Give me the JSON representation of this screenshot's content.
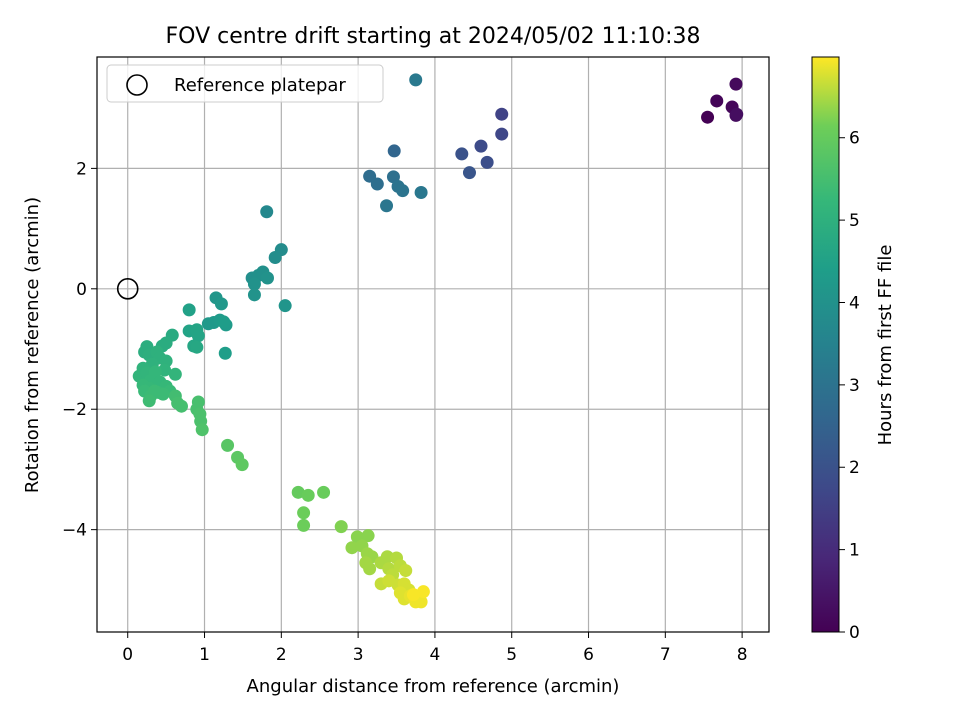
{
  "chart_data": {
    "type": "scatter",
    "title": "FOV centre drift starting at 2024/05/02 11:10:38",
    "xlabel": "Angular distance from reference (arcmin)",
    "ylabel": "Rotation from reference (arcmin)",
    "xlim": [
      -0.4,
      8.35
    ],
    "ylim": [
      -5.7,
      3.85
    ],
    "xticks": [
      0,
      1,
      2,
      3,
      4,
      5,
      6,
      7,
      8
    ],
    "yticks": [
      -4,
      -2,
      0,
      2
    ],
    "grid": true,
    "legend": {
      "position": "top-left",
      "entries": [
        "Reference platepar"
      ]
    },
    "reference_point": {
      "x": 0,
      "y": 0
    },
    "colorbar": {
      "label": "Hours from first FF file",
      "range": [
        0,
        6.98
      ],
      "ticks": [
        0,
        1,
        2,
        3,
        4,
        5,
        6
      ],
      "colormap": "viridis"
    },
    "points": [
      {
        "x": 7.55,
        "y": 2.85,
        "h": 0.0
      },
      {
        "x": 7.67,
        "y": 3.12,
        "h": 0.1
      },
      {
        "x": 7.87,
        "y": 3.02,
        "h": 0.15
      },
      {
        "x": 7.92,
        "y": 3.4,
        "h": 0.2
      },
      {
        "x": 7.92,
        "y": 2.88,
        "h": 0.25
      },
      {
        "x": 7.93,
        "y": 2.9,
        "h": 0.3
      },
      {
        "x": 4.87,
        "y": 2.9,
        "h": 1.6
      },
      {
        "x": 4.87,
        "y": 2.57,
        "h": 1.7
      },
      {
        "x": 4.6,
        "y": 2.37,
        "h": 1.8
      },
      {
        "x": 4.68,
        "y": 2.1,
        "h": 1.9
      },
      {
        "x": 4.35,
        "y": 2.24,
        "h": 2.0
      },
      {
        "x": 4.45,
        "y": 1.93,
        "h": 2.1
      },
      {
        "x": 3.47,
        "y": 2.29,
        "h": 2.6
      },
      {
        "x": 3.15,
        "y": 1.87,
        "h": 2.8
      },
      {
        "x": 3.25,
        "y": 1.74,
        "h": 2.85
      },
      {
        "x": 3.46,
        "y": 1.86,
        "h": 2.9
      },
      {
        "x": 3.52,
        "y": 1.7,
        "h": 3.0
      },
      {
        "x": 3.58,
        "y": 1.63,
        "h": 3.05
      },
      {
        "x": 3.37,
        "y": 1.38,
        "h": 3.1
      },
      {
        "x": 3.82,
        "y": 1.6,
        "h": 3.15
      },
      {
        "x": 3.75,
        "y": 3.47,
        "h": 3.2
      },
      {
        "x": 1.81,
        "y": 1.28,
        "h": 3.7
      },
      {
        "x": 2.0,
        "y": 0.65,
        "h": 3.8
      },
      {
        "x": 1.92,
        "y": 0.52,
        "h": 3.85
      },
      {
        "x": 1.62,
        "y": 0.18,
        "h": 3.9
      },
      {
        "x": 1.7,
        "y": 0.22,
        "h": 3.95
      },
      {
        "x": 1.76,
        "y": 0.28,
        "h": 3.95
      },
      {
        "x": 1.82,
        "y": 0.18,
        "h": 4.0
      },
      {
        "x": 1.65,
        "y": 0.08,
        "h": 4.0
      },
      {
        "x": 1.65,
        "y": -0.1,
        "h": 4.05
      },
      {
        "x": 2.05,
        "y": -0.28,
        "h": 4.1
      },
      {
        "x": 1.15,
        "y": -0.15,
        "h": 4.15
      },
      {
        "x": 1.22,
        "y": -0.25,
        "h": 4.2
      },
      {
        "x": 1.05,
        "y": -0.58,
        "h": 4.25
      },
      {
        "x": 1.12,
        "y": -0.56,
        "h": 4.25
      },
      {
        "x": 1.2,
        "y": -0.52,
        "h": 4.3
      },
      {
        "x": 1.28,
        "y": -0.6,
        "h": 4.3
      },
      {
        "x": 1.25,
        "y": -0.55,
        "h": 4.35
      },
      {
        "x": 1.27,
        "y": -1.07,
        "h": 4.4
      },
      {
        "x": 0.8,
        "y": -0.35,
        "h": 4.5
      },
      {
        "x": 0.8,
        "y": -0.7,
        "h": 4.55
      },
      {
        "x": 0.9,
        "y": -0.68,
        "h": 4.6
      },
      {
        "x": 0.92,
        "y": -0.78,
        "h": 4.6
      },
      {
        "x": 0.86,
        "y": -0.95,
        "h": 4.65
      },
      {
        "x": 0.9,
        "y": -0.97,
        "h": 4.7
      },
      {
        "x": 0.58,
        "y": -0.77,
        "h": 4.8
      },
      {
        "x": 0.5,
        "y": -0.9,
        "h": 4.85
      },
      {
        "x": 0.45,
        "y": -0.95,
        "h": 4.85
      },
      {
        "x": 0.25,
        "y": -0.96,
        "h": 4.9
      },
      {
        "x": 0.22,
        "y": -1.05,
        "h": 4.9
      },
      {
        "x": 0.28,
        "y": -1.1,
        "h": 4.95
      },
      {
        "x": 0.38,
        "y": -1.05,
        "h": 5.0
      },
      {
        "x": 0.42,
        "y": -1.15,
        "h": 5.0
      },
      {
        "x": 0.5,
        "y": -1.2,
        "h": 5.05
      },
      {
        "x": 0.32,
        "y": -1.25,
        "h": 5.05
      },
      {
        "x": 0.2,
        "y": -1.32,
        "h": 5.1
      },
      {
        "x": 0.48,
        "y": -1.35,
        "h": 5.1
      },
      {
        "x": 0.62,
        "y": -1.42,
        "h": 5.15
      },
      {
        "x": 0.15,
        "y": -1.45,
        "h": 5.15
      },
      {
        "x": 0.25,
        "y": -1.4,
        "h": 5.15
      },
      {
        "x": 0.36,
        "y": -1.38,
        "h": 5.2
      },
      {
        "x": 0.3,
        "y": -1.52,
        "h": 5.2
      },
      {
        "x": 0.42,
        "y": -1.55,
        "h": 5.2
      },
      {
        "x": 0.2,
        "y": -1.6,
        "h": 5.25
      },
      {
        "x": 0.28,
        "y": -1.65,
        "h": 5.25
      },
      {
        "x": 0.5,
        "y": -1.62,
        "h": 5.25
      },
      {
        "x": 0.55,
        "y": -1.7,
        "h": 5.3
      },
      {
        "x": 0.4,
        "y": -1.72,
        "h": 5.3
      },
      {
        "x": 0.22,
        "y": -1.7,
        "h": 5.3
      },
      {
        "x": 0.3,
        "y": -1.78,
        "h": 5.35
      },
      {
        "x": 0.46,
        "y": -1.75,
        "h": 5.35
      },
      {
        "x": 0.35,
        "y": -1.7,
        "h": 5.35
      },
      {
        "x": 0.28,
        "y": -1.86,
        "h": 5.4
      },
      {
        "x": 0.62,
        "y": -1.78,
        "h": 5.45
      },
      {
        "x": 0.65,
        "y": -1.9,
        "h": 5.5
      },
      {
        "x": 0.7,
        "y": -1.95,
        "h": 5.5
      },
      {
        "x": 0.92,
        "y": -1.88,
        "h": 5.55
      },
      {
        "x": 0.9,
        "y": -2.0,
        "h": 5.55
      },
      {
        "x": 0.94,
        "y": -2.08,
        "h": 5.6
      },
      {
        "x": 0.95,
        "y": -2.2,
        "h": 5.6
      },
      {
        "x": 0.97,
        "y": -2.34,
        "h": 5.65
      },
      {
        "x": 1.3,
        "y": -2.6,
        "h": 5.8
      },
      {
        "x": 1.43,
        "y": -2.8,
        "h": 5.85
      },
      {
        "x": 1.49,
        "y": -2.92,
        "h": 5.9
      },
      {
        "x": 2.22,
        "y": -3.38,
        "h": 6.0
      },
      {
        "x": 2.35,
        "y": -3.43,
        "h": 6.05
      },
      {
        "x": 2.55,
        "y": -3.38,
        "h": 6.05
      },
      {
        "x": 2.29,
        "y": -3.72,
        "h": 6.1
      },
      {
        "x": 2.29,
        "y": -3.93,
        "h": 6.1
      },
      {
        "x": 2.78,
        "y": -3.95,
        "h": 6.25
      },
      {
        "x": 2.99,
        "y": -4.12,
        "h": 6.3
      },
      {
        "x": 3.13,
        "y": -4.1,
        "h": 6.3
      },
      {
        "x": 2.92,
        "y": -4.3,
        "h": 6.35
      },
      {
        "x": 3.05,
        "y": -4.27,
        "h": 6.35
      },
      {
        "x": 3.12,
        "y": -4.4,
        "h": 6.4
      },
      {
        "x": 3.18,
        "y": -4.45,
        "h": 6.4
      },
      {
        "x": 3.1,
        "y": -4.55,
        "h": 6.45
      },
      {
        "x": 3.15,
        "y": -4.65,
        "h": 6.45
      },
      {
        "x": 3.3,
        "y": -4.55,
        "h": 6.5
      },
      {
        "x": 3.38,
        "y": -4.45,
        "h": 6.5
      },
      {
        "x": 3.5,
        "y": -4.47,
        "h": 6.55
      },
      {
        "x": 3.4,
        "y": -4.65,
        "h": 6.55
      },
      {
        "x": 3.45,
        "y": -4.75,
        "h": 6.6
      },
      {
        "x": 3.55,
        "y": -4.6,
        "h": 6.6
      },
      {
        "x": 3.62,
        "y": -4.68,
        "h": 6.65
      },
      {
        "x": 3.3,
        "y": -4.9,
        "h": 6.65
      },
      {
        "x": 3.4,
        "y": -4.85,
        "h": 6.7
      },
      {
        "x": 3.52,
        "y": -4.92,
        "h": 6.7
      },
      {
        "x": 3.6,
        "y": -4.9,
        "h": 6.75
      },
      {
        "x": 3.66,
        "y": -5.0,
        "h": 6.75
      },
      {
        "x": 3.55,
        "y": -5.05,
        "h": 6.8
      },
      {
        "x": 3.6,
        "y": -5.15,
        "h": 6.8
      },
      {
        "x": 3.68,
        "y": -5.1,
        "h": 6.85
      },
      {
        "x": 3.75,
        "y": -5.2,
        "h": 6.9
      },
      {
        "x": 3.82,
        "y": -5.2,
        "h": 6.9
      },
      {
        "x": 3.85,
        "y": -5.03,
        "h": 6.95
      },
      {
        "x": 3.72,
        "y": -5.08,
        "h": 6.95
      }
    ]
  }
}
